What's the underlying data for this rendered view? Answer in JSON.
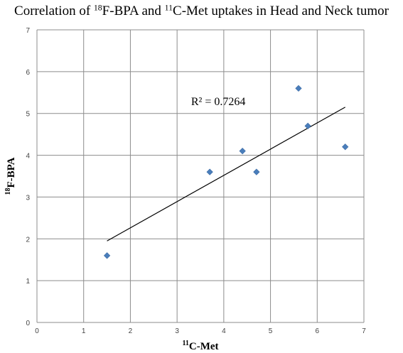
{
  "chart_data": {
    "type": "scatter",
    "title": {
      "prefix": "Correlation of ",
      "sup1": "18",
      "mid": "F-BPA and ",
      "sup2": "11",
      "suffix": "C-Met uptakes in Head and Neck tumor"
    },
    "xlabel": {
      "sup": "11",
      "text": "C-Met"
    },
    "ylabel": {
      "sup": "18",
      "text": "F-BPA"
    },
    "xlim": [
      0,
      7
    ],
    "ylim": [
      0,
      7
    ],
    "xticks": [
      0,
      1,
      2,
      3,
      4,
      5,
      6,
      7
    ],
    "yticks": [
      0,
      1,
      2,
      3,
      4,
      5,
      6,
      7
    ],
    "grid": true,
    "series": [
      {
        "marker": "diamond",
        "color": "#4a7ebb",
        "points": [
          {
            "x": 1.5,
            "y": 1.6
          },
          {
            "x": 3.7,
            "y": 3.6
          },
          {
            "x": 4.4,
            "y": 4.1
          },
          {
            "x": 4.7,
            "y": 3.6
          },
          {
            "x": 5.6,
            "y": 5.6
          },
          {
            "x": 5.8,
            "y": 4.7
          },
          {
            "x": 6.6,
            "y": 4.2
          }
        ]
      }
    ],
    "trendline": {
      "type": "linear",
      "x_start": 1.5,
      "y_start": 1.95,
      "x_end": 6.6,
      "y_end": 5.15,
      "color": "#000000"
    },
    "annotation": {
      "text": "R² = 0.7264",
      "x": 3.3,
      "y": 5.2
    }
  }
}
